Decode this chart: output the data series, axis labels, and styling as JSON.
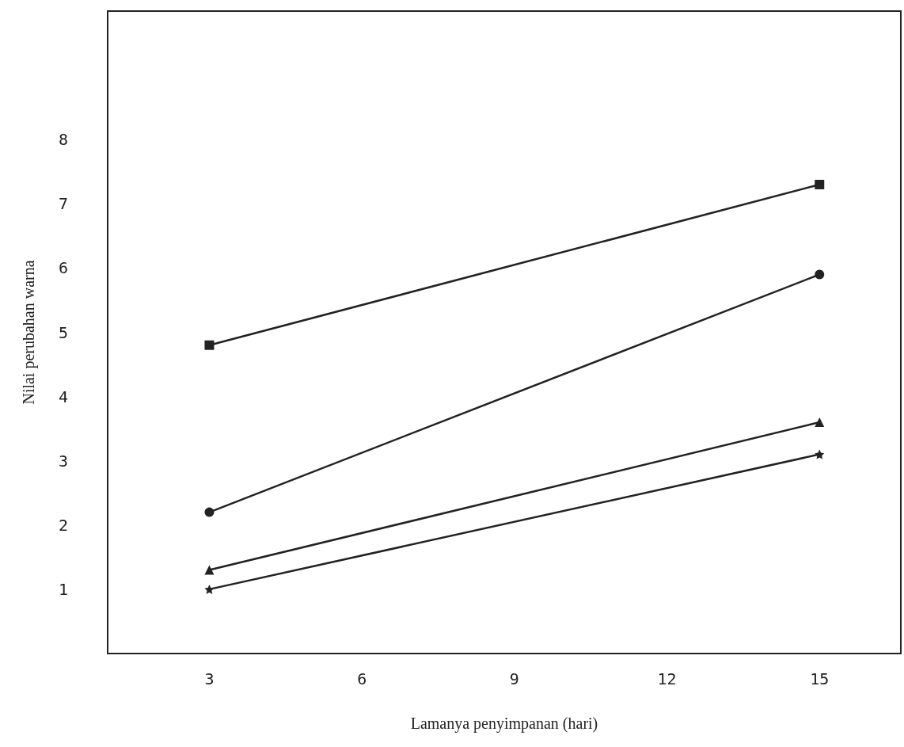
{
  "chart_data": {
    "type": "line",
    "xlabel": "Lamanya penyimpanan (hari)",
    "ylabel": "Nilai perubahan warna",
    "x": [
      3,
      15
    ],
    "series": [
      {
        "color": "#222222",
        "marker": "square",
        "values": [
          4.8,
          7.3
        ]
      },
      {
        "color": "#222222",
        "marker": "circle",
        "values": [
          2.2,
          5.9
        ]
      },
      {
        "color": "#222222",
        "marker": "triangle",
        "values": [
          1.3,
          3.6
        ]
      },
      {
        "color": "#222222",
        "marker": "star",
        "values": [
          1.0,
          3.1
        ]
      }
    ],
    "xlim": [
      1,
      16.6
    ],
    "xticks": [
      3,
      6,
      9,
      12,
      15
    ],
    "ylim": [
      0,
      10
    ],
    "yticks": [
      1,
      2,
      3,
      4,
      5,
      6,
      7,
      8
    ],
    "grid": false,
    "line_style": "solid"
  }
}
